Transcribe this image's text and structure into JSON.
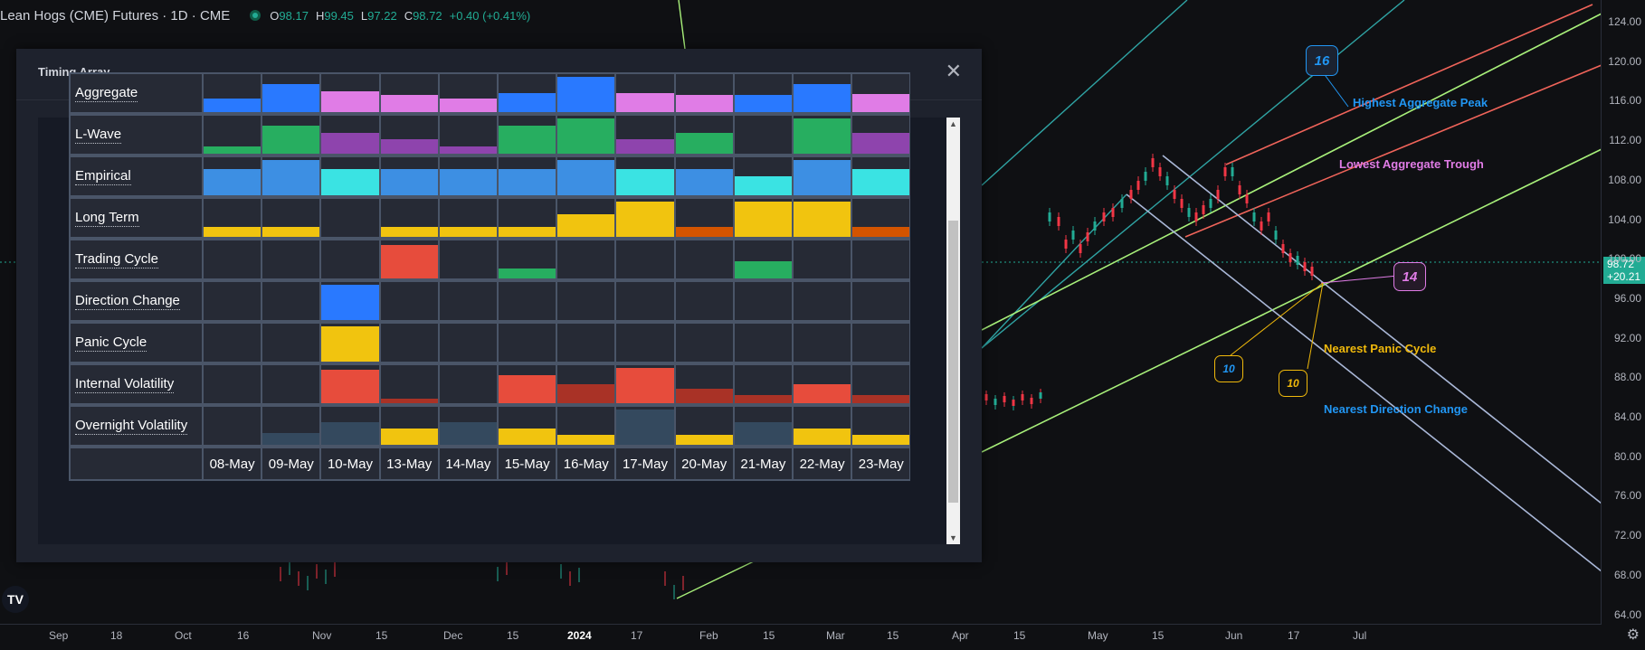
{
  "symbol": {
    "name": "Lean Hogs (CME) Futures",
    "interval": "1D",
    "exchange": "CME",
    "open_label": "O",
    "open": "98.17",
    "high_label": "H",
    "high": "99.45",
    "low_label": "L",
    "low": "97.22",
    "close_label": "C",
    "close": "98.72",
    "change": "+0.40 (+0.41%)"
  },
  "price_axis": {
    "ticks": [
      "124.00",
      "120.00",
      "116.00",
      "112.00",
      "108.00",
      "104.00",
      "100.00",
      "96.00",
      "92.00",
      "88.00",
      "84.00",
      "80.00",
      "76.00",
      "72.00",
      "68.00",
      "64.00"
    ],
    "last_price": "98.72",
    "last_change": "+20.21"
  },
  "time_axis": {
    "ticks": [
      "Sep",
      "18",
      "Oct",
      "16",
      "Nov",
      "15",
      "Dec",
      "15",
      "2024",
      "17",
      "Feb",
      "15",
      "Mar",
      "15",
      "Apr",
      "15",
      "May",
      "15",
      "Jun",
      "17",
      "Jul"
    ]
  },
  "annotations": {
    "highest_peak": "Highest Aggregate Peak",
    "lowest_trough": "Lowest Aggregate Trough",
    "nearest_panic": "Nearest Panic Cycle",
    "nearest_direction": "Nearest Direction Change",
    "count_peak": "16",
    "count_current": "14",
    "count_direction": "10",
    "count_panic": "10"
  },
  "colors": {
    "green_candle": "#22ab94",
    "red_candle": "#f23645",
    "peak_text": "#2196f3",
    "trough_text": "#e07ce6",
    "panic_text": "#f0b90b"
  },
  "dialog": {
    "title": "Timing Array",
    "close_icon": "close-icon"
  },
  "timing_array": {
    "dates": [
      "08-May",
      "09-May",
      "10-May",
      "13-May",
      "14-May",
      "15-May",
      "16-May",
      "17-May",
      "20-May",
      "21-May",
      "22-May",
      "23-May"
    ],
    "rows": [
      {
        "label": "Aggregate",
        "cells": [
          [
            0.35,
            "#2979ff"
          ],
          [
            0.75,
            "#2979ff"
          ],
          [
            0.55,
            "#e07ce6"
          ],
          [
            0.45,
            "#e07ce6"
          ],
          [
            0.35,
            "#e07ce6"
          ],
          [
            0.5,
            "#2979ff"
          ],
          [
            0.92,
            "#2979ff"
          ],
          [
            0.5,
            "#e07ce6"
          ],
          [
            0.45,
            "#e07ce6"
          ],
          [
            0.45,
            "#2979ff"
          ],
          [
            0.75,
            "#2979ff"
          ],
          [
            0.48,
            "#e07ce6"
          ]
        ]
      },
      {
        "label": "L-Wave",
        "cells": [
          [
            0.2,
            "#27ae60"
          ],
          [
            0.75,
            "#27ae60"
          ],
          [
            0.55,
            "#8e44ad"
          ],
          [
            0.38,
            "#8e44ad"
          ],
          [
            0.2,
            "#8e44ad"
          ],
          [
            0.75,
            "#27ae60"
          ],
          [
            0.92,
            "#27ae60"
          ],
          [
            0.38,
            "#8e44ad"
          ],
          [
            0.55,
            "#27ae60"
          ],
          [
            0,
            "#27ae60"
          ],
          [
            0.92,
            "#27ae60"
          ],
          [
            0.55,
            "#8e44ad"
          ]
        ]
      },
      {
        "label": "Empirical",
        "cells": [
          [
            0.7,
            "#3d8fe3"
          ],
          [
            0.92,
            "#3d8fe3"
          ],
          [
            0.7,
            "#3ae3e3"
          ],
          [
            0.7,
            "#3d8fe3"
          ],
          [
            0.7,
            "#3d8fe3"
          ],
          [
            0.7,
            "#3d8fe3"
          ],
          [
            0.92,
            "#3d8fe3"
          ],
          [
            0.7,
            "#3ae3e3"
          ],
          [
            0.7,
            "#3d8fe3"
          ],
          [
            0.5,
            "#3ae3e3"
          ],
          [
            0.92,
            "#3d8fe3"
          ],
          [
            0.7,
            "#3ae3e3"
          ]
        ]
      },
      {
        "label": "Long Term",
        "cells": [
          [
            0.27,
            "#f1c40f"
          ],
          [
            0.27,
            "#f1c40f"
          ],
          [
            0,
            "#f1c40f"
          ],
          [
            0.27,
            "#f1c40f"
          ],
          [
            0.27,
            "#f1c40f"
          ],
          [
            0.27,
            "#f1c40f"
          ],
          [
            0.6,
            "#f1c40f"
          ],
          [
            0.92,
            "#f1c40f"
          ],
          [
            0.27,
            "#d35400"
          ],
          [
            0.92,
            "#f1c40f"
          ],
          [
            0.92,
            "#f1c40f"
          ],
          [
            0.27,
            "#d35400"
          ]
        ]
      },
      {
        "label": "Trading Cycle",
        "cells": [
          [
            0,
            "#e74c3c"
          ],
          [
            0,
            "#e74c3c"
          ],
          [
            0,
            "#e74c3c"
          ],
          [
            0.88,
            "#e74c3c"
          ],
          [
            0,
            "#e74c3c"
          ],
          [
            0.27,
            "#27ae60"
          ],
          [
            0,
            "#e74c3c"
          ],
          [
            0,
            "#e74c3c"
          ],
          [
            0,
            "#e74c3c"
          ],
          [
            0.45,
            "#27ae60"
          ],
          [
            0,
            "#e74c3c"
          ],
          [
            0,
            "#e74c3c"
          ]
        ]
      },
      {
        "label": "Direction Change",
        "cells": [
          [
            0,
            "#2979ff"
          ],
          [
            0,
            "#2979ff"
          ],
          [
            0.92,
            "#2979ff"
          ],
          [
            0,
            "#2979ff"
          ],
          [
            0,
            "#2979ff"
          ],
          [
            0,
            "#2979ff"
          ],
          [
            0,
            "#2979ff"
          ],
          [
            0,
            "#2979ff"
          ],
          [
            0,
            "#2979ff"
          ],
          [
            0,
            "#2979ff"
          ],
          [
            0,
            "#2979ff"
          ],
          [
            0,
            "#2979ff"
          ]
        ]
      },
      {
        "label": "Panic Cycle",
        "cells": [
          [
            0,
            "#f1c40f"
          ],
          [
            0,
            "#f1c40f"
          ],
          [
            0.92,
            "#f1c40f"
          ],
          [
            0,
            "#f1c40f"
          ],
          [
            0,
            "#f1c40f"
          ],
          [
            0,
            "#f1c40f"
          ],
          [
            0,
            "#f1c40f"
          ],
          [
            0,
            "#f1c40f"
          ],
          [
            0,
            "#f1c40f"
          ],
          [
            0,
            "#f1c40f"
          ],
          [
            0,
            "#f1c40f"
          ],
          [
            0,
            "#f1c40f"
          ]
        ]
      },
      {
        "label": "Internal Volatility",
        "cells": [
          [
            0,
            "#e74c3c"
          ],
          [
            0,
            "#e74c3c"
          ],
          [
            0.88,
            "#e74c3c"
          ],
          [
            0.12,
            "#a93226"
          ],
          [
            0,
            "#e74c3c"
          ],
          [
            0.75,
            "#e74c3c"
          ],
          [
            0.5,
            "#a93226"
          ],
          [
            0.92,
            "#e74c3c"
          ],
          [
            0.38,
            "#a93226"
          ],
          [
            0.22,
            "#a93226"
          ],
          [
            0.5,
            "#e74c3c"
          ],
          [
            0.22,
            "#a93226"
          ]
        ]
      },
      {
        "label": "Overnight Volatility",
        "cells": [
          [
            0,
            "#34495e"
          ],
          [
            0.32,
            "#34495e"
          ],
          [
            0.6,
            "#34495e"
          ],
          [
            0.42,
            "#f1c40f"
          ],
          [
            0.6,
            "#34495e"
          ],
          [
            0.42,
            "#f1c40f"
          ],
          [
            0.27,
            "#f1c40f"
          ],
          [
            0.92,
            "#34495e"
          ],
          [
            0.27,
            "#f1c40f"
          ],
          [
            0.6,
            "#34495e"
          ],
          [
            0.42,
            "#f1c40f"
          ],
          [
            0.27,
            "#f1c40f"
          ]
        ]
      }
    ]
  }
}
